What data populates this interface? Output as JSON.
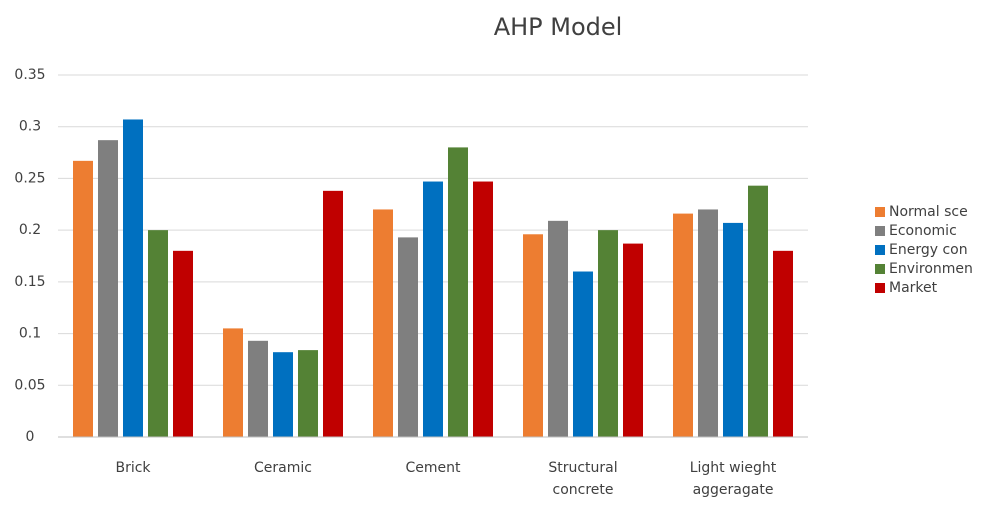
{
  "chart_data": {
    "type": "bar",
    "title": "AHP Model",
    "categories": [
      "Brick",
      "Ceramic",
      "Cement",
      "Structural concrete",
      "Light wieght aggeragate"
    ],
    "series": [
      {
        "name": "Normal sce",
        "color": "#ed7d31",
        "values": [
          0.267,
          0.105,
          0.22,
          0.196,
          0.216
        ]
      },
      {
        "name": "Economic",
        "color": "#7f7f7f",
        "values": [
          0.287,
          0.093,
          0.193,
          0.209,
          0.22
        ]
      },
      {
        "name": "Energy con",
        "color": "#0070c0",
        "values": [
          0.307,
          0.082,
          0.247,
          0.16,
          0.207
        ]
      },
      {
        "name": "Environmen",
        "color": "#548235",
        "values": [
          0.2,
          0.084,
          0.28,
          0.2,
          0.243
        ]
      },
      {
        "name": "Market",
        "color": "#c00000",
        "values": [
          0.18,
          0.238,
          0.247,
          0.187,
          0.18
        ]
      }
    ],
    "ylim": [
      0,
      0.35
    ],
    "yticks": [
      0,
      0.05,
      0.1,
      0.15,
      0.2,
      0.25,
      0.3,
      0.35
    ],
    "grid": true,
    "legend": "right"
  }
}
